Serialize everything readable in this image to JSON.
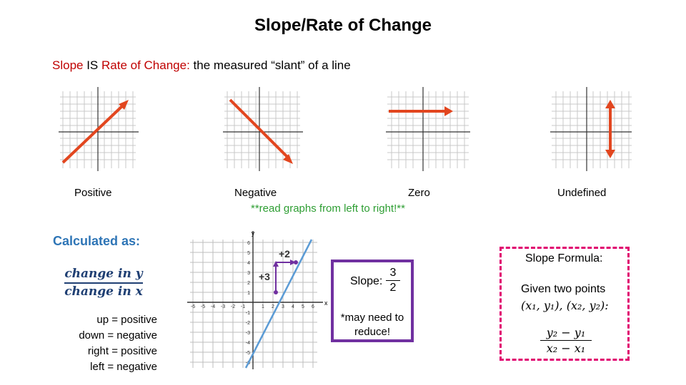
{
  "title": "Slope/Rate of Change",
  "subtitle": {
    "slope": "Slope",
    "is": " IS ",
    "rate": "Rate of Change",
    "colon": ":",
    "rest": "  the measured “slant” of a line"
  },
  "graph_labels": {
    "positive": "Positive",
    "negative": "Negative",
    "zero": "Zero",
    "undefined": "Undefined",
    "note": "**read graphs from left to right!**"
  },
  "calculated_as": "Calculated as:",
  "fraction": {
    "numerator": "change in y",
    "denominator": "change in x"
  },
  "rules": [
    "up = positive",
    "down = negative",
    "right = positive",
    "left = negative"
  ],
  "example_graph": {
    "rise_label": "+3",
    "run_label": "+2",
    "x_ticks": [
      "-6",
      "-5",
      "-4",
      "-3",
      "-2",
      "-1",
      "1",
      "2",
      "3",
      "4",
      "5",
      "6"
    ],
    "y_ticks_pos": [
      "6",
      "5",
      "4",
      "3",
      "2",
      "1"
    ],
    "y_ticks_neg": [
      "-1",
      "-2",
      "-3",
      "-4",
      "-5",
      "-6"
    ],
    "x_axis": "x",
    "y_axis": "y"
  },
  "slope_box": {
    "label": "Slope:",
    "numerator": "3",
    "denominator": "2",
    "note_line1": "*may need to",
    "note_line2": "reduce!"
  },
  "formula_box": {
    "heading": "Slope Formula:",
    "given": "Given two points",
    "points": "(x₁, y₁), (x₂, y₂):",
    "numerator": "y₂ − y₁",
    "denominator": "x₂ − x₁"
  },
  "colors": {
    "red_arrow": "#e2461f",
    "purple": "#7030a0",
    "pink": "#e0006f",
    "blue_line": "#5b9bd5",
    "accent_red": "#c00000",
    "green": "#2e9e33"
  }
}
